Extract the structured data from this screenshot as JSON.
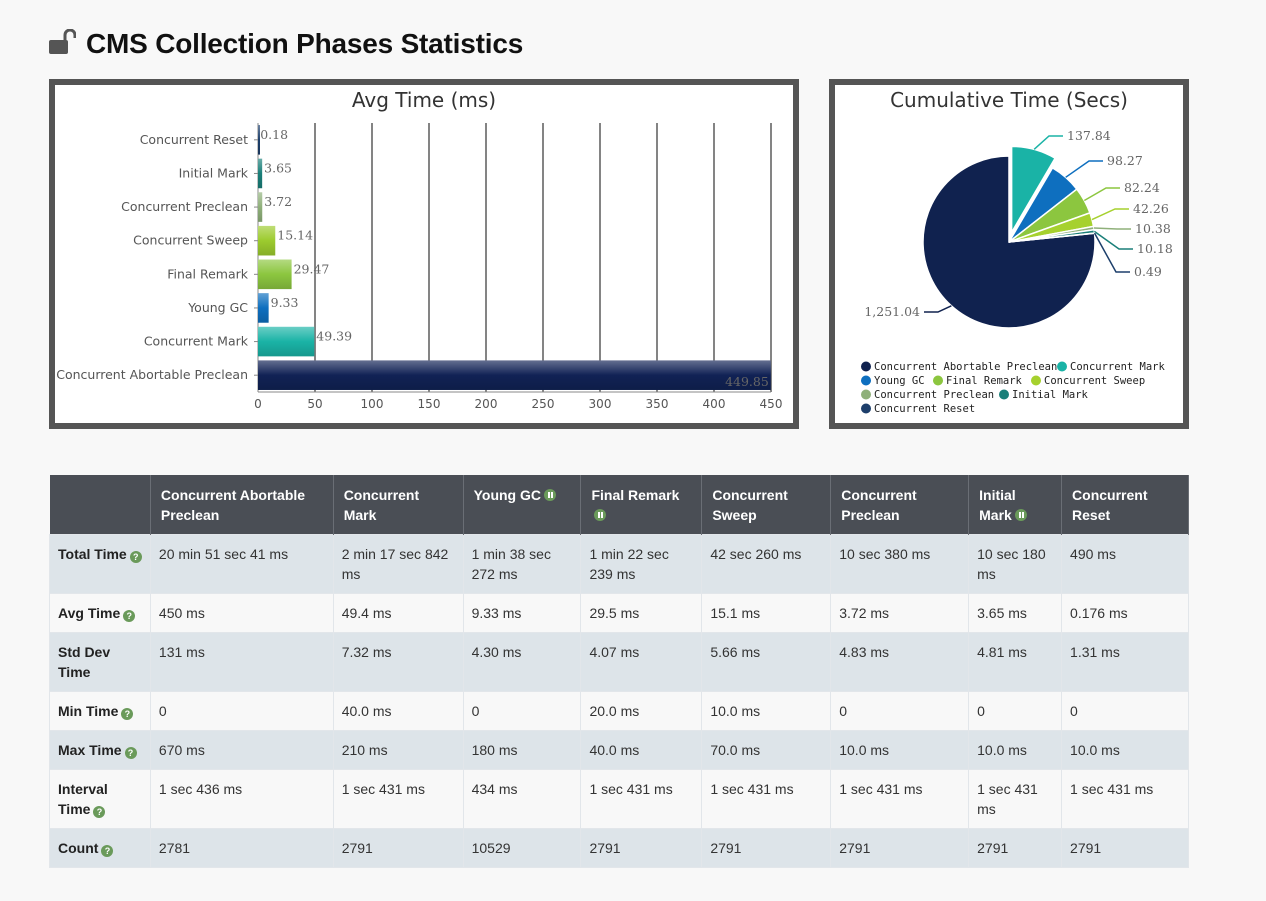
{
  "page": {
    "title": "CMS Collection Phases Statistics"
  },
  "chart_data": [
    {
      "type": "bar",
      "orientation": "horizontal",
      "title": "Avg Time (ms)",
      "categories": [
        "Concurrent Reset",
        "Initial Mark",
        "Concurrent Preclean",
        "Concurrent Sweep",
        "Final Remark",
        "Young GC",
        "Concurrent Mark",
        "Concurrent Abortable Preclean"
      ],
      "values": [
        0.18,
        3.65,
        3.72,
        15.14,
        29.47,
        9.33,
        49.39,
        449.85
      ],
      "value_labels": [
        "0.18",
        "3.65",
        "3.72",
        "15.14",
        "29.47",
        "9.33",
        "49.39",
        "449.85"
      ],
      "colors": [
        "#1d3f6b",
        "#1a7f79",
        "#8fb07a",
        "#9ccb2e",
        "#8cc63f",
        "#0e6fbf",
        "#1ab3a6",
        "#112255"
      ],
      "xlim": [
        0,
        450
      ],
      "xticks": [
        0,
        50,
        100,
        150,
        200,
        250,
        300,
        350,
        400,
        450
      ],
      "xtick_labels": [
        "0",
        "50",
        "100",
        "150",
        "200",
        "250",
        "300",
        "350",
        "400",
        "450"
      ],
      "grid": true
    },
    {
      "type": "pie",
      "title": "Cumulative Time (Secs)",
      "slices": [
        {
          "name": "Concurrent Abortable Preclean",
          "value": 1251.04,
          "label": "1,251.04",
          "color": "#10224f",
          "exploded": false
        },
        {
          "name": "Concurrent Mark",
          "value": 137.84,
          "label": "137.84",
          "color": "#1ab3a6",
          "exploded": true
        },
        {
          "name": "Young GC",
          "value": 98.27,
          "label": "98.27",
          "color": "#0e6fbf",
          "exploded": false
        },
        {
          "name": "Final Remark",
          "value": 82.24,
          "label": "82.24",
          "color": "#8cc63f",
          "exploded": false
        },
        {
          "name": "Concurrent Sweep",
          "value": 42.26,
          "label": "42.26",
          "color": "#a6d12e",
          "exploded": false
        },
        {
          "name": "Concurrent Preclean",
          "value": 10.38,
          "label": "10.38",
          "color": "#8fb07a",
          "exploded": false
        },
        {
          "name": "Initial Mark",
          "value": 10.18,
          "label": "10.18",
          "color": "#1a7f79",
          "exploded": false
        },
        {
          "name": "Concurrent Reset",
          "value": 0.49,
          "label": "0.49",
          "color": "#1d3f6b",
          "exploded": false
        }
      ],
      "legend": "bottom"
    }
  ],
  "table": {
    "columns": [
      {
        "label": "",
        "icon": ""
      },
      {
        "label": "Concurrent Abortable Preclean",
        "icon": ""
      },
      {
        "label": "Concurrent Mark",
        "icon": ""
      },
      {
        "label": "Young GC",
        "icon": "pause-icon"
      },
      {
        "label": "Final Remark",
        "icon": "pause-icon"
      },
      {
        "label": "Concurrent Sweep",
        "icon": ""
      },
      {
        "label": "Concurrent Preclean",
        "icon": ""
      },
      {
        "label": "Initial Mark",
        "icon": "pause-icon"
      },
      {
        "label": "Concurrent Reset",
        "icon": ""
      }
    ],
    "rows": [
      {
        "label": "Total Time",
        "cells": [
          "20 min 51 sec 41 ms",
          "2 min 17 sec 842 ms",
          "1 min 38 sec 272 ms",
          "1 min 22 sec 239 ms",
          "42 sec 260 ms",
          "10 sec 380 ms",
          "10 sec 180 ms",
          "490 ms"
        ]
      },
      {
        "label": "Avg Time",
        "cells": [
          "450 ms",
          "49.4 ms",
          "9.33 ms",
          "29.5 ms",
          "15.1 ms",
          "3.72 ms",
          "3.65 ms",
          "0.176 ms"
        ]
      },
      {
        "label": "Std Dev Time",
        "cells": [
          "131 ms",
          "7.32 ms",
          "4.30 ms",
          "4.07 ms",
          "5.66 ms",
          "4.83 ms",
          "4.81 ms",
          "1.31 ms"
        ]
      },
      {
        "label": "Min Time",
        "cells": [
          "0",
          "40.0 ms",
          "0",
          "20.0 ms",
          "10.0 ms",
          "0",
          "0",
          "0"
        ]
      },
      {
        "label": "Max Time",
        "cells": [
          "670 ms",
          "210 ms",
          "180 ms",
          "40.0 ms",
          "70.0 ms",
          "10.0 ms",
          "10.0 ms",
          "10.0 ms"
        ]
      },
      {
        "label": "Interval Time",
        "cells": [
          "1 sec 436 ms",
          "1 sec 431 ms",
          "434 ms",
          "1 sec 431 ms",
          "1 sec 431 ms",
          "1 sec 431 ms",
          "1 sec 431 ms",
          "1 sec 431 ms"
        ]
      },
      {
        "label": "Count",
        "cells": [
          "2781",
          "2791",
          "10529",
          "2791",
          "2791",
          "2791",
          "2791",
          "2791"
        ]
      }
    ],
    "help_glyph": "?",
    "rows_with_help": [
      "Total Time",
      "Avg Time",
      "Min Time",
      "Max Time",
      "Interval Time",
      "Count"
    ]
  }
}
